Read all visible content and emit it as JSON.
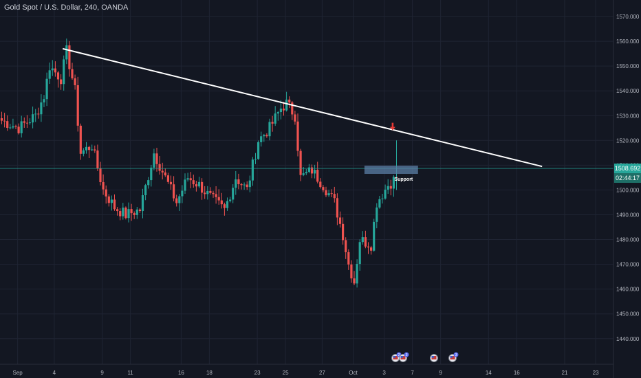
{
  "header": {
    "title": "Gold Spot / U.S. Dollar, 240, OANDA"
  },
  "price_tag": {
    "price": "1508.692",
    "countdown": "02:44:17"
  },
  "annotations": {
    "support_label": "Support"
  },
  "colors": {
    "background": "#131722",
    "up": "#26a69a",
    "down": "#ef5350",
    "grid": "#1f2433",
    "axis_text": "#b2b5be",
    "trendline": "#ffffff",
    "support_box": "#5b7fa6",
    "arrow": "#e53935",
    "price_line": "#26a69a"
  },
  "chart_data": {
    "type": "candlestick",
    "title": "Gold Spot / U.S. Dollar, 240, OANDA",
    "ylim": [
      1433,
      1575
    ],
    "y_ticks": [
      1440,
      1450,
      1460,
      1470,
      1480,
      1490,
      1500,
      1510,
      1520,
      1530,
      1540,
      1550,
      1560,
      1570
    ],
    "y_tick_labels": [
      "1440.000",
      "1450.000",
      "1460.000",
      "1470.000",
      "1480.000",
      "1490.000",
      "1500.000",
      "1510.000",
      "1520.000",
      "1530.000",
      "1540.000",
      "1550.000",
      "1560.000",
      "1570.000"
    ],
    "x_ticks": [
      "Sep",
      "4",
      "9",
      "11",
      "16",
      "18",
      "23",
      "25",
      "27",
      "Oct",
      "3",
      "7",
      "9",
      "14",
      "16",
      "21",
      "23"
    ],
    "x_tick_index": [
      6,
      19,
      36,
      46,
      64,
      74,
      91,
      101,
      114,
      125,
      136,
      146,
      156,
      173,
      183,
      200,
      211
    ],
    "waypoints": [
      [
        0,
        1528
      ],
      [
        6,
        1525
      ],
      [
        12,
        1530
      ],
      [
        15,
        1538
      ],
      [
        17,
        1550
      ],
      [
        21,
        1545
      ],
      [
        23,
        1556
      ],
      [
        26,
        1540
      ],
      [
        28,
        1515
      ],
      [
        32,
        1518
      ],
      [
        36,
        1500
      ],
      [
        40,
        1493
      ],
      [
        44,
        1490
      ],
      [
        49,
        1492
      ],
      [
        54,
        1515
      ],
      [
        58,
        1505
      ],
      [
        62,
        1495
      ],
      [
        66,
        1505
      ],
      [
        70,
        1502
      ],
      [
        74,
        1497
      ],
      [
        79,
        1492
      ],
      [
        83,
        1505
      ],
      [
        87,
        1500
      ],
      [
        91,
        1520
      ],
      [
        95,
        1525
      ],
      [
        99,
        1533
      ],
      [
        101,
        1535
      ],
      [
        104,
        1530
      ],
      [
        106,
        1505
      ],
      [
        110,
        1508
      ],
      [
        114,
        1502
      ],
      [
        118,
        1495
      ],
      [
        121,
        1482
      ],
      [
        123,
        1470
      ],
      [
        125,
        1463
      ],
      [
        127,
        1480
      ],
      [
        131,
        1478
      ],
      [
        133,
        1495
      ],
      [
        137,
        1502
      ],
      [
        140,
        1505
      ]
    ],
    "trendline": {
      "from": [
        22,
        1557
      ],
      "to": [
        192,
        1509.5
      ]
    },
    "support_zone": {
      "x": [
        129,
        148
      ],
      "y": [
        1506.5,
        1509.8
      ],
      "label": "Support"
    },
    "arrow_at": [
      139,
      1526
    ],
    "current_price": 1508.692,
    "countdown": "02:44:17"
  }
}
